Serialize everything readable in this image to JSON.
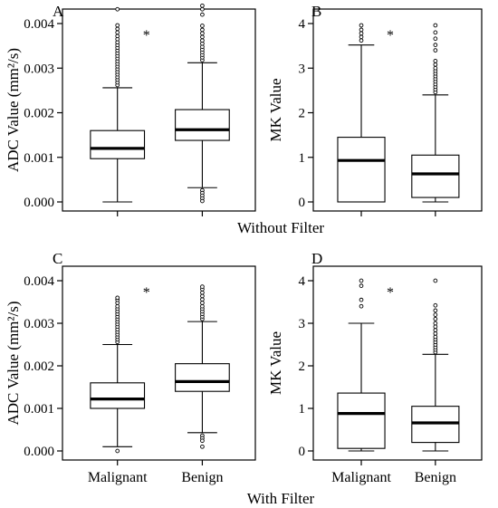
{
  "group_labels": {
    "top": "Without Filter",
    "bottom": "With Filter"
  },
  "chart_data": [
    {
      "type": "boxplot",
      "panel_label": "A",
      "ylabel": "ADC Value (mm²/s)",
      "ylim": [
        0,
        0.004
      ],
      "yticks": [
        "0.000",
        "0.001",
        "0.002",
        "0.003",
        "0.004"
      ],
      "ytick_values": [
        0,
        0.001,
        0.002,
        0.003,
        0.004
      ],
      "categories": [
        "Malignant",
        "Benign"
      ],
      "show_category_labels": false,
      "significance": {
        "category": "Malignant",
        "symbol": "*"
      },
      "boxes": [
        {
          "category": "Malignant",
          "whisker_low": 0.0,
          "q1": 0.00097,
          "median": 0.0012,
          "q3": 0.0016,
          "whisker_high": 0.00256,
          "outliers": [
            0.00262,
            0.00268,
            0.00274,
            0.0028,
            0.00286,
            0.00292,
            0.00298,
            0.00304,
            0.0031,
            0.00316,
            0.00322,
            0.00328,
            0.00334,
            0.0034,
            0.00346,
            0.00352,
            0.00358,
            0.00365,
            0.00372,
            0.0038,
            0.00388,
            0.00396,
            0.00432
          ]
        },
        {
          "category": "Benign",
          "whisker_low": 0.00032,
          "q1": 0.00138,
          "median": 0.00162,
          "q3": 0.00207,
          "whisker_high": 0.00312,
          "outliers": [
            0.00318,
            0.00324,
            0.0033,
            0.00336,
            0.00342,
            0.00348,
            0.00355,
            0.00362,
            0.0037,
            0.00378,
            0.00386,
            0.00395,
            0.0042,
            0.00432,
            0.0044,
            0.00026,
            0.0002,
            0.00014,
            8e-05,
            2e-05
          ]
        }
      ]
    },
    {
      "type": "boxplot",
      "panel_label": "B",
      "ylabel": "MK Value",
      "ylim": [
        0,
        4
      ],
      "yticks": [
        "0",
        "1",
        "2",
        "3",
        "4"
      ],
      "ytick_values": [
        0,
        1,
        2,
        3,
        4
      ],
      "categories": [
        "Malignant",
        "Benign"
      ],
      "show_category_labels": false,
      "significance": {
        "category": "Malignant",
        "symbol": "*"
      },
      "boxes": [
        {
          "category": "Malignant",
          "whisker_low": 0.0,
          "q1": 0.0,
          "median": 0.93,
          "q3": 1.45,
          "whisker_high": 3.52,
          "outliers": [
            3.62,
            3.7,
            3.78,
            3.86,
            3.96
          ]
        },
        {
          "category": "Benign",
          "whisker_low": 0.0,
          "q1": 0.1,
          "median": 0.63,
          "q3": 1.05,
          "whisker_high": 2.4,
          "outliers": [
            2.46,
            2.52,
            2.58,
            2.64,
            2.7,
            2.76,
            2.82,
            2.88,
            2.94,
            3.0,
            3.08,
            3.16,
            3.4,
            3.52,
            3.66,
            3.8,
            3.96
          ]
        }
      ]
    },
    {
      "type": "boxplot",
      "panel_label": "C",
      "ylabel": "ADC Value (mm²/s)",
      "ylim": [
        0,
        0.004
      ],
      "yticks": [
        "0.000",
        "0.001",
        "0.002",
        "0.003",
        "0.004"
      ],
      "ytick_values": [
        0,
        0.001,
        0.002,
        0.003,
        0.004
      ],
      "categories": [
        "Malignant",
        "Benign"
      ],
      "show_category_labels": true,
      "significance": {
        "category": "Malignant",
        "symbol": "*"
      },
      "boxes": [
        {
          "category": "Malignant",
          "whisker_low": 0.0001,
          "q1": 0.001,
          "median": 0.00122,
          "q3": 0.0016,
          "whisker_high": 0.0025,
          "outliers": [
            0.00256,
            0.00262,
            0.00268,
            0.00274,
            0.0028,
            0.00286,
            0.00292,
            0.00298,
            0.00304,
            0.0031,
            0.00316,
            0.00322,
            0.00328,
            0.00334,
            0.0034,
            0.00348,
            0.00355,
            0.0036,
            0.0
          ]
        },
        {
          "category": "Benign",
          "whisker_low": 0.00043,
          "q1": 0.0014,
          "median": 0.00163,
          "q3": 0.00205,
          "whisker_high": 0.00304,
          "outliers": [
            0.0031,
            0.00316,
            0.00322,
            0.00328,
            0.00334,
            0.0034,
            0.00348,
            0.00356,
            0.00364,
            0.00372,
            0.0038,
            0.00386,
            0.00036,
            0.0003,
            0.00024,
            0.0001
          ]
        }
      ]
    },
    {
      "type": "boxplot",
      "panel_label": "D",
      "ylabel": "MK Value",
      "ylim": [
        0,
        4
      ],
      "yticks": [
        "0",
        "1",
        "2",
        "3",
        "4"
      ],
      "ytick_values": [
        0,
        1,
        2,
        3,
        4
      ],
      "categories": [
        "Malignant",
        "Benign"
      ],
      "show_category_labels": true,
      "significance": {
        "category": "Malignant",
        "symbol": "*"
      },
      "boxes": [
        {
          "category": "Malignant",
          "whisker_low": 0.0,
          "q1": 0.06,
          "median": 0.88,
          "q3": 1.36,
          "whisker_high": 3.0,
          "outliers": [
            3.4,
            3.55,
            3.88,
            4.0
          ]
        },
        {
          "category": "Benign",
          "whisker_low": 0.0,
          "q1": 0.2,
          "median": 0.66,
          "q3": 1.05,
          "whisker_high": 2.27,
          "outliers": [
            2.32,
            2.38,
            2.44,
            2.5,
            2.56,
            2.62,
            2.68,
            2.76,
            2.84,
            2.92,
            3.0,
            3.1,
            3.2,
            3.3,
            3.42,
            4.0
          ]
        }
      ]
    }
  ]
}
